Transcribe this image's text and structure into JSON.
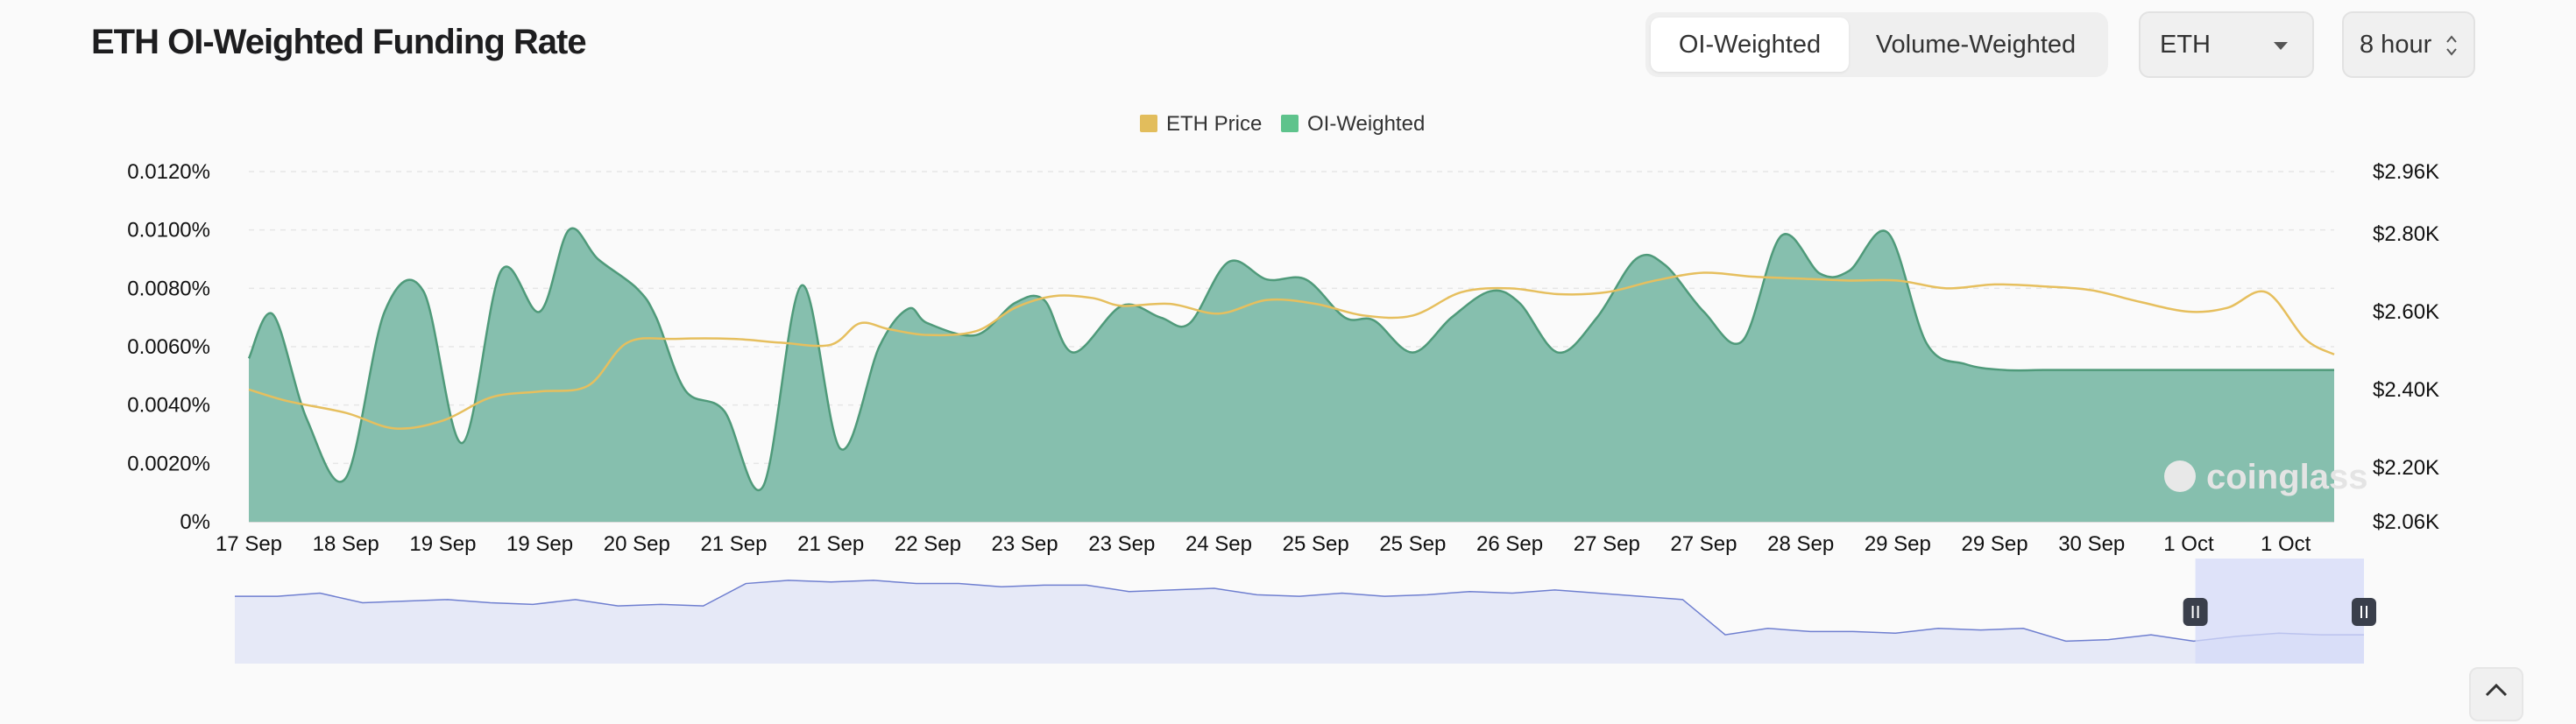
{
  "header": {
    "title": "ETH OI-Weighted Funding Rate",
    "toggle": [
      {
        "label": "OI-Weighted",
        "active": true
      },
      {
        "label": "Volume-Weighted",
        "active": false
      }
    ],
    "asset_select": {
      "value": "ETH"
    },
    "interval_select": {
      "value": "8 hour"
    }
  },
  "colors": {
    "funding_fill": "#86bfae",
    "funding_line": "#4f9a7a",
    "price_line": "#e6bf5e",
    "legend_price": "#e2bd5c",
    "legend_oi": "#5ec38c",
    "navigator_fill": "#e6e9f7",
    "navigator_line": "#6f7fd0",
    "navigator_window": "#d4d9f8"
  },
  "watermark": "coinglass",
  "chart_data": {
    "type": "area",
    "title": "",
    "legend": {
      "placement": "top-center",
      "entries": [
        "ETH Price",
        "OI-Weighted"
      ]
    },
    "x_tick_labels": [
      "17 Sep",
      "18 Sep",
      "19 Sep",
      "19 Sep",
      "20 Sep",
      "21 Sep",
      "21 Sep",
      "22 Sep",
      "23 Sep",
      "23 Sep",
      "24 Sep",
      "25 Sep",
      "25 Sep",
      "26 Sep",
      "27 Sep",
      "27 Sep",
      "28 Sep",
      "29 Sep",
      "29 Sep",
      "30 Sep",
      "1 Oct",
      "1 Oct"
    ],
    "y_left": {
      "ticks": [
        "0%",
        "0.0020%",
        "0.0040%",
        "0.0060%",
        "0.0080%",
        "0.0100%",
        "0.0120%"
      ],
      "values": [
        0,
        0.002,
        0.004,
        0.006,
        0.008,
        0.01,
        0.012
      ],
      "range": [
        0,
        0.012
      ]
    },
    "y_right": {
      "ticks": [
        "$2.06K",
        "$2.20K",
        "$2.40K",
        "$2.60K",
        "$2.80K",
        "$2.96K"
      ],
      "values": [
        2060,
        2200,
        2400,
        2600,
        2800,
        2960
      ],
      "range": [
        2060,
        2960
      ]
    },
    "grid": true,
    "series": [
      {
        "name": "OI-Weighted",
        "axis": "left",
        "t": [
          0,
          0.25,
          0.6,
          1.0,
          1.4,
          1.8,
          2.2,
          2.6,
          3.0,
          3.3,
          3.6,
          4.0,
          4.2,
          4.5,
          4.9,
          5.3,
          5.7,
          6.1,
          6.5,
          6.8,
          7.0,
          7.5,
          7.9,
          8.2,
          8.5,
          9.0,
          9.4,
          9.7,
          10.1,
          10.5,
          10.9,
          11.3,
          11.6,
          12.0,
          12.4,
          12.8,
          13.1,
          13.5,
          13.9,
          14.3,
          14.6,
          15.0,
          15.4,
          15.8,
          16.2,
          16.5,
          16.9,
          17.3,
          17.7,
          18.1,
          18.5,
          18.8,
          19.2,
          19.6,
          20.0,
          20.4,
          20.8,
          21.2,
          21.5
        ],
        "values": [
          0.0056,
          0.0071,
          0.0035,
          0.0015,
          0.0072,
          0.0079,
          0.0027,
          0.0086,
          0.0072,
          0.01,
          0.009,
          0.008,
          0.007,
          0.0045,
          0.0038,
          0.0012,
          0.0081,
          0.0025,
          0.006,
          0.0073,
          0.0068,
          0.0064,
          0.0075,
          0.0076,
          0.0058,
          0.0074,
          0.007,
          0.0068,
          0.0089,
          0.0083,
          0.0083,
          0.007,
          0.0069,
          0.0058,
          0.007,
          0.0079,
          0.0075,
          0.0058,
          0.007,
          0.009,
          0.0088,
          0.0072,
          0.0062,
          0.0098,
          0.0085,
          0.0086,
          0.0099,
          0.0061,
          0.0054,
          0.0052,
          0.0052,
          0.0052,
          0.0052,
          0.0052,
          0.0052,
          0.0052,
          0.0052,
          0.0052,
          0.0052
        ]
      },
      {
        "name": "ETH Price",
        "axis": "right",
        "t": [
          0,
          0.4,
          1.0,
          1.5,
          2.0,
          2.5,
          3.0,
          3.5,
          3.9,
          4.4,
          5.0,
          5.5,
          6.0,
          6.3,
          6.6,
          7.0,
          7.5,
          7.9,
          8.3,
          8.7,
          9.0,
          9.5,
          10.0,
          10.5,
          11.0,
          11.5,
          12.0,
          12.5,
          13.0,
          13.5,
          14.0,
          14.5,
          15.0,
          15.5,
          16.0,
          16.5,
          17.0,
          17.5,
          18.0,
          18.5,
          19.0,
          19.5,
          20.0,
          20.4,
          20.8,
          21.2,
          21.5
        ],
        "values": [
          2400,
          2370,
          2340,
          2300,
          2320,
          2380,
          2395,
          2410,
          2520,
          2530,
          2530,
          2520,
          2515,
          2570,
          2555,
          2540,
          2550,
          2610,
          2640,
          2635,
          2615,
          2620,
          2595,
          2630,
          2620,
          2590,
          2590,
          2650,
          2660,
          2645,
          2650,
          2680,
          2700,
          2690,
          2685,
          2680,
          2680,
          2660,
          2670,
          2665,
          2655,
          2625,
          2600,
          2610,
          2650,
          2530,
          2490
        ]
      }
    ],
    "navigator": {
      "series": [
        0.42,
        0.42,
        0.44,
        0.38,
        0.39,
        0.4,
        0.38,
        0.37,
        0.4,
        0.36,
        0.37,
        0.36,
        0.5,
        0.52,
        0.51,
        0.52,
        0.5,
        0.5,
        0.48,
        0.49,
        0.49,
        0.45,
        0.46,
        0.47,
        0.43,
        0.42,
        0.44,
        0.42,
        0.43,
        0.45,
        0.44,
        0.46,
        0.44,
        0.42,
        0.4,
        0.18,
        0.22,
        0.2,
        0.2,
        0.19,
        0.22,
        0.21,
        0.22,
        0.14,
        0.15,
        0.18,
        0.14,
        0.17,
        0.19,
        0.18,
        0.18
      ],
      "window": [
        0.92,
        1.0
      ]
    }
  }
}
